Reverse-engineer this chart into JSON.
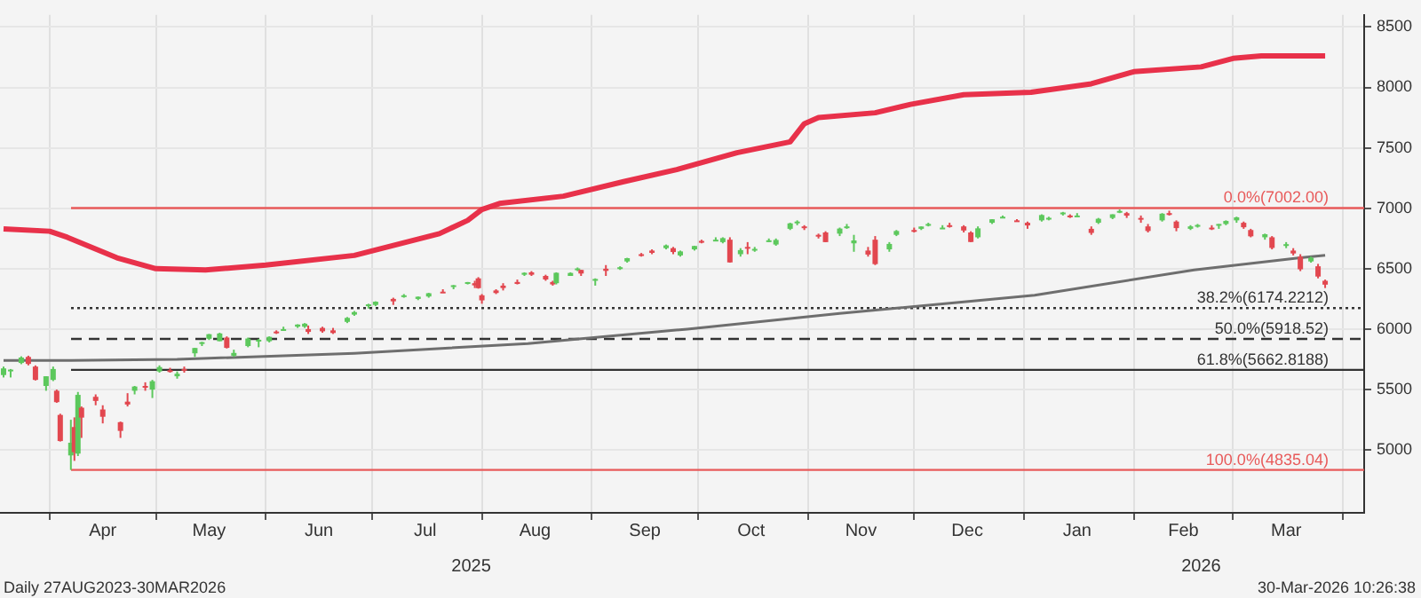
{
  "chart_data": {
    "type": "candlestick",
    "legend": false,
    "grid": true,
    "xlim": [
      "2025-03-18",
      "2026-04-07"
    ],
    "xticks": [
      {
        "value": "2025-04-01",
        "label": null
      },
      {
        "value": "2025-04-16",
        "label": "Apr"
      },
      {
        "value": "2025-05-01",
        "label": null
      },
      {
        "value": "2025-05-16",
        "label": "May"
      },
      {
        "value": "2025-06-01",
        "label": null
      },
      {
        "value": "2025-06-16",
        "label": "Jun"
      },
      {
        "value": "2025-07-01",
        "label": null
      },
      {
        "value": "2025-07-16",
        "label": "Jul"
      },
      {
        "value": "2025-08-01",
        "label": null
      },
      {
        "value": "2025-08-16",
        "label": "Aug"
      },
      {
        "value": "2025-09-01",
        "label": null
      },
      {
        "value": "2025-09-16",
        "label": "Sep"
      },
      {
        "value": "2025-10-01",
        "label": null
      },
      {
        "value": "2025-10-16",
        "label": "Oct"
      },
      {
        "value": "2025-11-01",
        "label": null
      },
      {
        "value": "2025-11-16",
        "label": "Nov"
      },
      {
        "value": "2025-12-01",
        "label": null
      },
      {
        "value": "2025-12-16",
        "label": "Dec"
      },
      {
        "value": "2026-01-01",
        "label": null
      },
      {
        "value": "2026-01-16",
        "label": "Jan"
      },
      {
        "value": "2026-02-01",
        "label": null
      },
      {
        "value": "2026-02-15",
        "label": "Feb"
      },
      {
        "value": "2026-03-01",
        "label": null
      },
      {
        "value": "2026-03-16",
        "label": "Mar"
      },
      {
        "value": "2026-04-01",
        "label": null
      }
    ],
    "x2lim": [
      "2025-03-18",
      "2026-04-07"
    ],
    "x2ticks": [
      {
        "value": "2025-07-29",
        "label": "2025"
      },
      {
        "value": "2026-02-20",
        "label": "2026"
      }
    ],
    "ylim": [
      4480,
      8600
    ],
    "yticks": [
      5000,
      5500,
      6000,
      6500,
      7000,
      7500,
      8000,
      8500
    ],
    "x": [
      "2025-03-19",
      "2025-03-21",
      "2025-03-24",
      "2025-03-26",
      "2025-03-28",
      "2025-03-31",
      "2025-04-02",
      "2025-04-03",
      "2025-04-04",
      "2025-04-07",
      "2025-04-08",
      "2025-04-09",
      "2025-04-10",
      "2025-04-14",
      "2025-04-16",
      "2025-04-21",
      "2025-04-23",
      "2025-04-25",
      "2025-04-28",
      "2025-04-30",
      "2025-05-02",
      "2025-05-05",
      "2025-05-07",
      "2025-05-09",
      "2025-05-12",
      "2025-05-14",
      "2025-05-16",
      "2025-05-19",
      "2025-05-21",
      "2025-05-23",
      "2025-05-27",
      "2025-05-30",
      "2025-06-02",
      "2025-06-04",
      "2025-06-06",
      "2025-06-10",
      "2025-06-12",
      "2025-06-13",
      "2025-06-17",
      "2025-06-20",
      "2025-06-24",
      "2025-06-26",
      "2025-06-30",
      "2025-07-02",
      "2025-07-07",
      "2025-07-10",
      "2025-07-14",
      "2025-07-17",
      "2025-07-21",
      "2025-07-24",
      "2025-07-28",
      "2025-07-30",
      "2025-07-31",
      "2025-08-01",
      "2025-08-05",
      "2025-08-07",
      "2025-08-11",
      "2025-08-13",
      "2025-08-15",
      "2025-08-19",
      "2025-08-21",
      "2025-08-22",
      "2025-08-26",
      "2025-08-28",
      "2025-08-29",
      "2025-09-02",
      "2025-09-05",
      "2025-09-09",
      "2025-09-11",
      "2025-09-15",
      "2025-09-18",
      "2025-09-22",
      "2025-09-24",
      "2025-09-26",
      "2025-09-30",
      "2025-10-02",
      "2025-10-06",
      "2025-10-08",
      "2025-10-10",
      "2025-10-13",
      "2025-10-15",
      "2025-10-17",
      "2025-10-21",
      "2025-10-23",
      "2025-10-27",
      "2025-10-29",
      "2025-10-31",
      "2025-11-04",
      "2025-11-06",
      "2025-11-10",
      "2025-11-12",
      "2025-11-14",
      "2025-11-18",
      "2025-11-20",
      "2025-11-24",
      "2025-11-26",
      "2025-12-01",
      "2025-12-03",
      "2025-12-05",
      "2025-12-09",
      "2025-12-11",
      "2025-12-15",
      "2025-12-17",
      "2025-12-19",
      "2025-12-23",
      "2025-12-26",
      "2025-12-30",
      "2026-01-02",
      "2026-01-06",
      "2026-01-08",
      "2026-01-12",
      "2026-01-14",
      "2026-01-16",
      "2026-01-20",
      "2026-01-22",
      "2026-01-26",
      "2026-01-28",
      "2026-01-30",
      "2026-02-03",
      "2026-02-05",
      "2026-02-09",
      "2026-02-11",
      "2026-02-13",
      "2026-02-17",
      "2026-02-19",
      "2026-02-23",
      "2026-02-25",
      "2026-02-27",
      "2026-03-02",
      "2026-03-04",
      "2026-03-06",
      "2026-03-10",
      "2026-03-12",
      "2026-03-16",
      "2026-03-18",
      "2026-03-20",
      "2026-03-23",
      "2026-03-25",
      "2026-03-27"
    ],
    "ohlc": [
      [
        5620,
        5690,
        5600,
        5675
      ],
      [
        5660,
        5670,
        5600,
        5665
      ],
      [
        5720,
        5775,
        5710,
        5765
      ],
      [
        5770,
        5780,
        5700,
        5712
      ],
      [
        5690,
        5700,
        5575,
        5580
      ],
      [
        5530,
        5610,
        5490,
        5610
      ],
      [
        5580,
        5690,
        5570,
        5670
      ],
      [
        5490,
        5500,
        5390,
        5396
      ],
      [
        5290,
        5300,
        5070,
        5074
      ],
      [
        4955,
        5250,
        4835,
        5060
      ],
      [
        5190,
        5270,
        4910,
        4982
      ],
      [
        4970,
        5480,
        4950,
        5456
      ],
      [
        5350,
        5360,
        5100,
        5268
      ],
      [
        5440,
        5460,
        5370,
        5406
      ],
      [
        5335,
        5370,
        5220,
        5275
      ],
      [
        5230,
        5235,
        5100,
        5158
      ],
      [
        5400,
        5470,
        5360,
        5376
      ],
      [
        5490,
        5530,
        5460,
        5525
      ],
      [
        5530,
        5560,
        5490,
        5528
      ],
      [
        5500,
        5580,
        5430,
        5569
      ],
      [
        5650,
        5700,
        5640,
        5686
      ],
      [
        5660,
        5680,
        5640,
        5650
      ],
      [
        5610,
        5650,
        5590,
        5631
      ],
      [
        5670,
        5690,
        5640,
        5660
      ],
      [
        5800,
        5845,
        5770,
        5844
      ],
      [
        5880,
        5895,
        5860,
        5892
      ],
      [
        5920,
        5960,
        5910,
        5958
      ],
      [
        5900,
        5970,
        5900,
        5964
      ],
      [
        5930,
        5940,
        5840,
        5845
      ],
      [
        5780,
        5830,
        5770,
        5803
      ],
      [
        5860,
        5930,
        5850,
        5922
      ],
      [
        5910,
        5920,
        5850,
        5912
      ],
      [
        5900,
        5940,
        5890,
        5936
      ],
      [
        5980,
        5990,
        5960,
        5971
      ],
      [
        6000,
        6020,
        5990,
        6000
      ],
      [
        6020,
        6040,
        6010,
        6038
      ],
      [
        6020,
        6050,
        6010,
        6045
      ],
      [
        6000,
        6030,
        5960,
        5977
      ],
      [
        6010,
        6020,
        5970,
        5982
      ],
      [
        5990,
        6010,
        5960,
        5968
      ],
      [
        6060,
        6100,
        6050,
        6093
      ],
      [
        6120,
        6150,
        6110,
        6141
      ],
      [
        6190,
        6210,
        6170,
        6205
      ],
      [
        6200,
        6230,
        6190,
        6227
      ],
      [
        6250,
        6260,
        6200,
        6230
      ],
      [
        6270,
        6290,
        6260,
        6280
      ],
      [
        6250,
        6270,
        6240,
        6268
      ],
      [
        6270,
        6300,
        6260,
        6297
      ],
      [
        6310,
        6330,
        6300,
        6305
      ],
      [
        6350,
        6365,
        6330,
        6363
      ],
      [
        6380,
        6390,
        6370,
        6389
      ],
      [
        6380,
        6400,
        6340,
        6362
      ],
      [
        6420,
        6430,
        6335,
        6339
      ],
      [
        6280,
        6290,
        6210,
        6238
      ],
      [
        6320,
        6330,
        6290,
        6299
      ],
      [
        6360,
        6380,
        6320,
        6340
      ],
      [
        6390,
        6410,
        6370,
        6374
      ],
      [
        6450,
        6470,
        6440,
        6466
      ],
      [
        6470,
        6480,
        6440,
        6450
      ],
      [
        6440,
        6450,
        6400,
        6411
      ],
      [
        6390,
        6400,
        6360,
        6370
      ],
      [
        6380,
        6470,
        6370,
        6466
      ],
      [
        6440,
        6470,
        6440,
        6465
      ],
      [
        6490,
        6510,
        6480,
        6502
      ],
      [
        6490,
        6490,
        6440,
        6460
      ],
      [
        6400,
        6420,
        6360,
        6415
      ],
      [
        6500,
        6530,
        6440,
        6482
      ],
      [
        6510,
        6520,
        6490,
        6512
      ],
      [
        6560,
        6590,
        6550,
        6587
      ],
      [
        6620,
        6630,
        6600,
        6615
      ],
      [
        6650,
        6660,
        6620,
        6631
      ],
      [
        6670,
        6700,
        6660,
        6693
      ],
      [
        6670,
        6680,
        6620,
        6638
      ],
      [
        6610,
        6650,
        6600,
        6643
      ],
      [
        6660,
        6690,
        6650,
        6688
      ],
      [
        6730,
        6740,
        6710,
        6715
      ],
      [
        6740,
        6760,
        6730,
        6740
      ],
      [
        6720,
        6760,
        6710,
        6753
      ],
      [
        6740,
        6760,
        6550,
        6552
      ],
      [
        6620,
        6670,
        6600,
        6654
      ],
      [
        6680,
        6720,
        6620,
        6671
      ],
      [
        6650,
        6680,
        6640,
        6664
      ],
      [
        6730,
        6750,
        6720,
        6735
      ],
      [
        6700,
        6750,
        6690,
        6738
      ],
      [
        6830,
        6880,
        6820,
        6875
      ],
      [
        6890,
        6900,
        6860,
        6890
      ],
      [
        6850,
        6860,
        6820,
        6840
      ],
      [
        6780,
        6790,
        6750,
        6771
      ],
      [
        6800,
        6810,
        6720,
        6720
      ],
      [
        6790,
        6840,
        6770,
        6832
      ],
      [
        6850,
        6870,
        6830,
        6850
      ],
      [
        6710,
        6780,
        6640,
        6734
      ],
      [
        6650,
        6680,
        6600,
        6617
      ],
      [
        6740,
        6770,
        6530,
        6538
      ],
      [
        6660,
        6720,
        6640,
        6705
      ],
      [
        6780,
        6820,
        6770,
        6812
      ],
      [
        6820,
        6840,
        6800,
        6812
      ],
      [
        6830,
        6850,
        6820,
        6849
      ],
      [
        6860,
        6880,
        6850,
        6870
      ],
      [
        6840,
        6860,
        6830,
        6840
      ],
      [
        6860,
        6880,
        6840,
        6850
      ],
      [
        6850,
        6860,
        6800,
        6816
      ],
      [
        6800,
        6810,
        6720,
        6721
      ],
      [
        6760,
        6850,
        6750,
        6834
      ],
      [
        6880,
        6910,
        6870,
        6909
      ],
      [
        6930,
        6940,
        6920,
        6930
      ],
      [
        6900,
        6910,
        6890,
        6896
      ],
      [
        6880,
        6890,
        6830,
        6858
      ],
      [
        6900,
        6950,
        6890,
        6944
      ],
      [
        6920,
        6930,
        6900,
        6921
      ],
      [
        6950,
        6970,
        6940,
        6965
      ],
      [
        6940,
        6950,
        6920,
        6926
      ],
      [
        6940,
        6960,
        6930,
        6940
      ],
      [
        6830,
        6850,
        6780,
        6796
      ],
      [
        6880,
        6920,
        6870,
        6913
      ],
      [
        6920,
        6950,
        6910,
        6950
      ],
      [
        6970,
        6990,
        6960,
        6978
      ],
      [
        6960,
        6970,
        6920,
        6939
      ],
      [
        6920,
        6940,
        6880,
        6917
      ],
      [
        6850,
        6870,
        6800,
        6812
      ],
      [
        6900,
        6960,
        6890,
        6955
      ],
      [
        6960,
        6980,
        6940,
        6945
      ],
      [
        6890,
        6900,
        6810,
        6836
      ],
      [
        6830,
        6860,
        6820,
        6850
      ],
      [
        6850,
        6870,
        6840,
        6862
      ],
      [
        6840,
        6860,
        6820,
        6834
      ],
      [
        6860,
        6870,
        6830,
        6870
      ],
      [
        6870,
        6900,
        6860,
        6895
      ],
      [
        6900,
        6930,
        6880,
        6925
      ],
      [
        6880,
        6890,
        6830,
        6843
      ],
      [
        6820,
        6830,
        6760,
        6768
      ],
      [
        6760,
        6790,
        6740,
        6785
      ],
      [
        6760,
        6770,
        6660,
        6672
      ],
      [
        6690,
        6720,
        6670,
        6703
      ],
      [
        6650,
        6670,
        6610,
        6626
      ],
      [
        6600,
        6620,
        6480,
        6495
      ],
      [
        6560,
        6600,
        6550,
        6590
      ],
      [
        6520,
        6540,
        6420,
        6435
      ],
      [
        6400,
        6410,
        6340,
        6368
      ]
    ],
    "colors": [
      "#5cc85c",
      "#5cc85c",
      "#5cc85c",
      "#e2474f",
      "#e2474f",
      "#5cc85c",
      "#5cc85c",
      "#e2474f",
      "#e2474f",
      "#5cc85c",
      "#e2474f",
      "#5cc85c",
      "#e2474f",
      "#e2474f",
      "#e2474f",
      "#e2474f",
      "#e2474f",
      "#5cc85c",
      "#e2474f",
      "#5cc85c",
      "#5cc85c",
      "#e2474f",
      "#5cc85c",
      "#e2474f",
      "#5cc85c",
      "#5cc85c",
      "#5cc85c",
      "#5cc85c",
      "#e2474f",
      "#5cc85c",
      "#5cc85c",
      "#5cc85c",
      "#5cc85c",
      "#e2474f",
      "#5cc85c",
      "#5cc85c",
      "#5cc85c",
      "#e2474f",
      "#e2474f",
      "#e2474f",
      "#5cc85c",
      "#5cc85c",
      "#5cc85c",
      "#5cc85c",
      "#e2474f",
      "#5cc85c",
      "#5cc85c",
      "#5cc85c",
      "#e2474f",
      "#5cc85c",
      "#5cc85c",
      "#e2474f",
      "#e2474f",
      "#e2474f",
      "#e2474f",
      "#e2474f",
      "#e2474f",
      "#5cc85c",
      "#e2474f",
      "#e2474f",
      "#e2474f",
      "#5cc85c",
      "#5cc85c",
      "#5cc85c",
      "#e2474f",
      "#5cc85c",
      "#e2474f",
      "#5cc85c",
      "#5cc85c",
      "#e2474f",
      "#e2474f",
      "#5cc85c",
      "#e2474f",
      "#5cc85c",
      "#5cc85c",
      "#e2474f",
      "#5cc85c",
      "#5cc85c",
      "#e2474f",
      "#5cc85c",
      "#e2474f",
      "#5cc85c",
      "#5cc85c",
      "#5cc85c",
      "#5cc85c",
      "#5cc85c",
      "#e2474f",
      "#e2474f",
      "#e2474f",
      "#5cc85c",
      "#5cc85c",
      "#5cc85c",
      "#e2474f",
      "#e2474f",
      "#5cc85c",
      "#5cc85c",
      "#e2474f",
      "#5cc85c",
      "#5cc85c",
      "#5cc85c",
      "#e2474f",
      "#e2474f",
      "#e2474f",
      "#5cc85c",
      "#5cc85c",
      "#5cc85c",
      "#e2474f",
      "#e2474f",
      "#5cc85c",
      "#5cc85c",
      "#5cc85c",
      "#e2474f",
      "#5cc85c",
      "#e2474f",
      "#5cc85c",
      "#5cc85c",
      "#5cc85c",
      "#e2474f",
      "#e2474f",
      "#e2474f",
      "#5cc85c",
      "#e2474f",
      "#e2474f",
      "#5cc85c",
      "#5cc85c",
      "#e2474f",
      "#5cc85c",
      "#5cc85c",
      "#5cc85c",
      "#e2474f",
      "#e2474f",
      "#5cc85c",
      "#e2474f",
      "#5cc85c",
      "#e2474f",
      "#e2474f",
      "#5cc85c",
      "#e2474f",
      "#e2474f"
    ],
    "series": [
      {
        "type": "line",
        "color": "#e8314a",
        "x": [
          "2025-03-19",
          "2025-04-01",
          "2025-04-06",
          "2025-04-20",
          "2025-05-01",
          "2025-05-15",
          "2025-06-01",
          "2025-06-26",
          "2025-07-20",
          "2025-07-28",
          "2025-08-01",
          "2025-08-06",
          "2025-08-24",
          "2025-09-10",
          "2025-09-25",
          "2025-10-12",
          "2025-10-27",
          "2025-10-31",
          "2025-11-04",
          "2025-11-20",
          "2025-11-30",
          "2025-12-15",
          "2026-01-03",
          "2026-01-20",
          "2026-02-01",
          "2026-02-20",
          "2026-03-01",
          "2026-03-09",
          "2026-03-27"
        ],
        "values": [
          6830,
          6810,
          6760,
          6590,
          6500,
          6490,
          6530,
          6610,
          6790,
          6900,
          6990,
          7040,
          7100,
          7220,
          7320,
          7460,
          7550,
          7700,
          7750,
          7790,
          7860,
          7940,
          7960,
          8030,
          8130,
          8170,
          8240,
          8260,
          8260
        ]
      },
      {
        "type": "line",
        "color": "#6e6e6e",
        "x": [
          "2025-03-19",
          "2025-04-07",
          "2025-05-07",
          "2025-06-26",
          "2025-08-14",
          "2025-09-28",
          "2025-11-10",
          "2026-01-04",
          "2026-02-18",
          "2026-03-20",
          "2026-03-27"
        ],
        "values": [
          5740,
          5740,
          5750,
          5800,
          5880,
          6000,
          6130,
          6280,
          6490,
          6590,
          6610
        ]
      }
    ],
    "ref_lines": [
      {
        "axis": "y",
        "value": 7002,
        "label": "0.0%(7002.00)",
        "color": "#e85a5a",
        "line_style": "solid"
      },
      {
        "axis": "y",
        "value": 6174.2212,
        "label": "38.2%(6174.2212)",
        "color": "#333333",
        "line_style": "dotted"
      },
      {
        "axis": "y",
        "value": 5918.52,
        "label": "50.0%(5918.52)",
        "color": "#333333",
        "line_style": "dashed"
      },
      {
        "axis": "y",
        "value": 5662.8188,
        "label": "61.8%(5662.8188)",
        "color": "#333333",
        "line_style": "solid"
      },
      {
        "axis": "y",
        "value": 4835.04,
        "label": "100.0%(4835.04)",
        "color": "#e85a5a",
        "line_style": "solid"
      }
    ],
    "annotations": [
      "Daily 27AUG2023-30MAR2026",
      "30-Mar-2026 10:26:38"
    ]
  }
}
